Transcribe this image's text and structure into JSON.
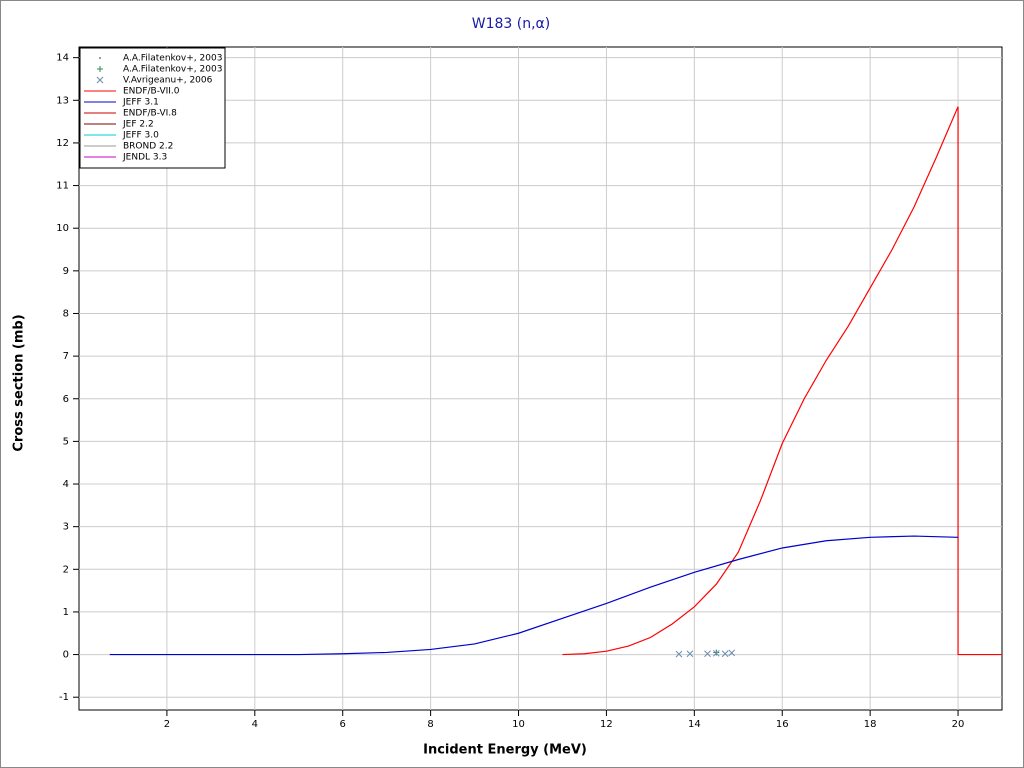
{
  "chart_data": {
    "type": "line",
    "title": "W183 (n,α)",
    "x_label": "Incident Energy (MeV)",
    "y_label": "Cross section (mb)",
    "xlim": [
      0,
      21
    ],
    "ylim": [
      -1.3,
      14.25
    ],
    "xticks": [
      2,
      4,
      6,
      8,
      10,
      12,
      14,
      16,
      18,
      20
    ],
    "yticks": [
      -1,
      0,
      1,
      2,
      3,
      4,
      5,
      6,
      7,
      8,
      9,
      10,
      11,
      12,
      13,
      14
    ],
    "grid": true,
    "legend": "top-left",
    "series": [
      {
        "name": "A.A.Filatenkov+, 2003",
        "marker": "dot",
        "color": "#708090",
        "x": [
          14.5
        ],
        "values": [
          0.03
        ]
      },
      {
        "name": "A.A.Filatenkov+, 2003",
        "marker": "plus",
        "color": "#2e8b57",
        "x": [
          14.5
        ],
        "values": [
          0.05
        ]
      },
      {
        "name": "V.Avrigeanu+, 2006",
        "marker": "cross",
        "color": "#6a8caf",
        "x": [
          13.65,
          13.9,
          14.3,
          14.5,
          14.7,
          14.85
        ],
        "values": [
          0.01,
          0.02,
          0.02,
          0.03,
          0.02,
          0.04
        ]
      },
      {
        "name": "ENDF/B-VII.0",
        "marker": "line",
        "color": "#ff0000",
        "x": [
          11,
          11.5,
          12,
          12.5,
          13,
          13.5,
          14,
          14.5,
          15,
          15.5,
          16,
          16.5,
          17,
          17.5,
          18,
          18.5,
          19,
          19.5,
          20,
          20,
          21
        ],
        "values": [
          0,
          0.02,
          0.08,
          0.2,
          0.4,
          0.72,
          1.12,
          1.65,
          2.4,
          3.6,
          4.95,
          6.0,
          6.9,
          7.7,
          8.6,
          9.5,
          10.5,
          11.65,
          12.85,
          0,
          0
        ]
      },
      {
        "name": "JEFF 3.1",
        "marker": "line",
        "color": "#0000cc",
        "x": [
          0.7,
          3,
          5,
          6,
          7,
          8,
          9,
          10,
          11,
          12,
          13,
          14,
          15,
          16,
          17,
          18,
          19,
          20
        ],
        "values": [
          0,
          0,
          0,
          0.02,
          0.05,
          0.12,
          0.25,
          0.5,
          0.85,
          1.2,
          1.58,
          1.93,
          2.23,
          2.5,
          2.67,
          2.75,
          2.78,
          2.75
        ]
      },
      {
        "name": "ENDF/B-VI.8",
        "marker": "line",
        "color": "#cc0000",
        "x": [],
        "values": []
      },
      {
        "name": "JEF 2.2",
        "marker": "line",
        "color": "#800000",
        "x": [],
        "values": []
      },
      {
        "name": "JEFF 3.0",
        "marker": "line",
        "color": "#00cccc",
        "x": [],
        "values": []
      },
      {
        "name": "BROND 2.2",
        "marker": "line",
        "color": "#999999",
        "x": [],
        "values": []
      },
      {
        "name": "JENDL 3.3",
        "marker": "line",
        "color": "#cc00cc",
        "x": [],
        "values": []
      }
    ]
  }
}
